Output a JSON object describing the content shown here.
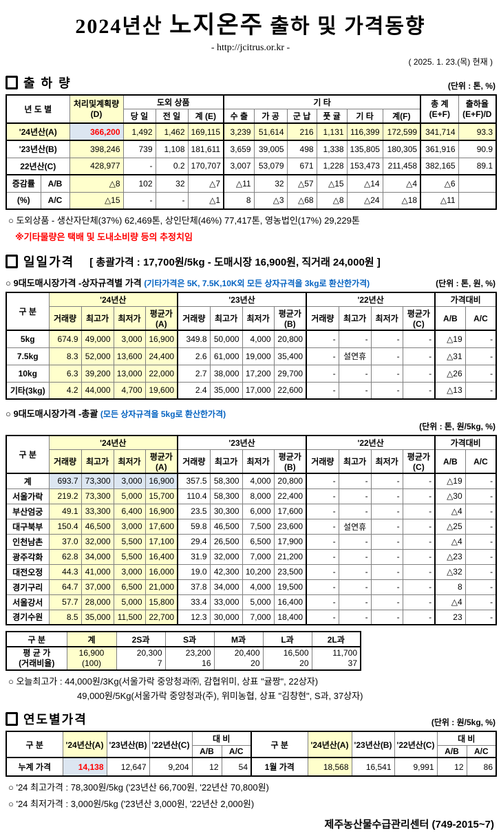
{
  "colors": {
    "highlight_yellow": "#FFFFCC",
    "highlight_blue": "#DCE6F1",
    "accent_red": "#FF0000",
    "accent_blue": "#0563C1"
  },
  "header": {
    "title_pre": "2024년산 ",
    "title_em": "노지온주",
    "title_post": " 출하 및 가격동향",
    "subtitle": "- http://jcitrus.or.kr -",
    "date_note": "( 2025.  1.  23.(목) 현재 )"
  },
  "shipment": {
    "section_title": "출 하 량",
    "unit": "(단위 : 톤, %)",
    "cols": {
      "yeardo": "년 도 별",
      "plan": "처리및계획량\n(D)",
      "island": "도외 상품",
      "day": "당 일",
      "prev": "전 일",
      "sumE": "계 (E)",
      "etc_group": "기            타",
      "export": "수 출",
      "proc": "가 공",
      "mil": "군 납",
      "green": "풋 귤",
      "etc": "기 타",
      "sumF": "계(F)",
      "total": "총   계\n(E+F)",
      "rate": "출하율\n(E+F)/D"
    },
    "rows": [
      [
        {
          "t": "'24년산(A)",
          "c": "lbl yl",
          "s": 2
        },
        {
          "t": "366,200",
          "c": "bl red"
        },
        {
          "t": "1,492",
          "c": "yl"
        },
        {
          "t": "1,462",
          "c": "yl"
        },
        {
          "t": "169,115",
          "c": "yl"
        },
        {
          "t": "3,239",
          "c": "yl gl"
        },
        {
          "t": "51,614",
          "c": "yl"
        },
        {
          "t": "216",
          "c": "yl"
        },
        {
          "t": "1,131",
          "c": "yl"
        },
        {
          "t": "116,399",
          "c": "yl"
        },
        {
          "t": "172,599",
          "c": "yl"
        },
        {
          "t": "341,714",
          "c": "yl gl"
        },
        {
          "t": "93.3",
          "c": "yl"
        }
      ],
      [
        {
          "t": "'23년산(B)",
          "c": "lbl",
          "s": 2
        },
        {
          "t": "398,246",
          "c": "yl"
        },
        "739",
        "1,108",
        "181,611",
        {
          "t": "3,659",
          "c": "gl"
        },
        "39,005",
        "498",
        "1,338",
        "135,805",
        "180,305",
        {
          "t": "361,916",
          "c": "gl"
        },
        "90.9"
      ],
      [
        {
          "t": "22년산(C)",
          "c": "lbl",
          "s": 2
        },
        {
          "t": "428,977",
          "c": "yl"
        },
        "-",
        "0.2",
        "170,707",
        {
          "t": "3,007",
          "c": "gl"
        },
        "53,079",
        "671",
        "1,228",
        "153,473",
        "211,458",
        {
          "t": "382,165",
          "c": "gl"
        },
        "89.1"
      ],
      [
        {
          "t": "증감률",
          "c": "lbl"
        },
        {
          "t": "A/B",
          "c": "lbl"
        },
        {
          "t": "△8",
          "c": "yl"
        },
        "102",
        "32",
        "△7",
        {
          "t": "△11",
          "c": "gl"
        },
        "32",
        "△57",
        "△15",
        "△14",
        "△4",
        {
          "t": "△6",
          "c": "gl"
        },
        ""
      ],
      [
        {
          "t": "(%)",
          "c": "lbl"
        },
        {
          "t": "A/C",
          "c": "lbl"
        },
        {
          "t": "△15",
          "c": "yl"
        },
        "-",
        "-",
        "△1",
        {
          "t": "8",
          "c": "gl"
        },
        "△3",
        "△68",
        "△8",
        "△24",
        "△18",
        {
          "t": "△11",
          "c": "gl"
        },
        ""
      ]
    ],
    "note1": "○ 도외상품 - 생산자단체(37%) 62,469톤, 상인단체(46%) 77,417톤, 영농법인(17%) 29,229톤",
    "note2": "※기타물량은 택배 및 도내소비량 등의 추정치임"
  },
  "daily": {
    "section_title": "일일가격",
    "summary": "[ 총괄가격 : 17,700원/5kg - 도매시장 16,900원, 직거래 24,000원 ]",
    "group_cols": {
      "g24": "'24년산",
      "g23": "'23년산",
      "g22": "'22년산",
      "cmp": "가격대비",
      "gubun": "구   분"
    },
    "sub_cols": [
      "거래량",
      "최고가",
      "최저가",
      "평균가(A)",
      "거래량",
      "최고가",
      "최저가",
      "평균가(B)",
      "거래량",
      "최고가",
      "최저가",
      "평균가(C)",
      "A/B",
      "A/C"
    ],
    "by_size": {
      "heading": "○ 9대도매시장가격 -상자규격별 가격",
      "heading_note": "(기타가격은 5K, 7.5K,10K외 모든 상자규격을 3kg로 환산한가격)",
      "unit": "(단위 : 톤, 원, %)",
      "rows": [
        [
          {
            "t": "5kg",
            "c": "lbl"
          },
          {
            "t": "674.9",
            "c": "yl"
          },
          {
            "t": "49,000",
            "c": "yl"
          },
          {
            "t": "3,000",
            "c": "yl"
          },
          {
            "t": "16,900",
            "c": "yl"
          },
          "349.8",
          "50,000",
          "4,000",
          "20,800",
          "-",
          "-",
          "-",
          "-",
          "△19",
          "-"
        ],
        [
          {
            "t": "7.5kg",
            "c": "lbl"
          },
          {
            "t": "8.3",
            "c": "yl"
          },
          {
            "t": "52,000",
            "c": "yl"
          },
          {
            "t": "13,600",
            "c": "yl"
          },
          {
            "t": "24,400",
            "c": "yl"
          },
          "2.6",
          "61,000",
          "19,000",
          "35,400",
          "-",
          {
            "t": "설연휴",
            "c": "ctr"
          },
          "-",
          "-",
          "△31",
          "-"
        ],
        [
          {
            "t": "10kg",
            "c": "lbl"
          },
          {
            "t": "6.3",
            "c": "yl"
          },
          {
            "t": "39,200",
            "c": "yl"
          },
          {
            "t": "13,000",
            "c": "yl"
          },
          {
            "t": "22,000",
            "c": "yl"
          },
          "2.7",
          "38,000",
          "17,200",
          "29,700",
          "-",
          "-",
          "-",
          "-",
          "△26",
          "-"
        ],
        [
          {
            "t": "기타(3kg)",
            "c": "lbl"
          },
          {
            "t": "4.2",
            "c": "yl"
          },
          {
            "t": "44,000",
            "c": "yl"
          },
          {
            "t": "4,700",
            "c": "yl"
          },
          {
            "t": "19,600",
            "c": "yl"
          },
          "2.4",
          "35,000",
          "17,000",
          "22,600",
          "-",
          "-",
          "-",
          "-",
          "△13",
          "-"
        ]
      ]
    },
    "overall": {
      "heading": "○ 9대도매시장가격 -총괄",
      "heading_note": "(모든 상자규격을 5kg로 환산한가격)",
      "unit": "(단위 : 톤, 원/5kg, %)",
      "rows": [
        [
          {
            "t": "계",
            "c": "lbl"
          },
          {
            "t": "693.7",
            "c": "bl"
          },
          {
            "t": "73,300",
            "c": "bl"
          },
          {
            "t": "3,000",
            "c": "bl"
          },
          {
            "t": "16,900",
            "c": "bl"
          },
          "357.5",
          "58,300",
          "4,000",
          "20,800",
          "-",
          "-",
          "-",
          "-",
          "△19",
          "-"
        ],
        [
          {
            "t": "서울가락",
            "c": "lbl"
          },
          {
            "t": "219.2",
            "c": "yl"
          },
          {
            "t": "73,300",
            "c": "yl"
          },
          {
            "t": "5,000",
            "c": "yl"
          },
          {
            "t": "15,700",
            "c": "yl"
          },
          "110.4",
          "58,300",
          "8,000",
          "22,400",
          "-",
          "-",
          "-",
          "-",
          "△30",
          "-"
        ],
        [
          {
            "t": "부산엄궁",
            "c": "lbl"
          },
          {
            "t": "49.1",
            "c": "yl"
          },
          {
            "t": "33,300",
            "c": "yl"
          },
          {
            "t": "6,400",
            "c": "yl"
          },
          {
            "t": "16,900",
            "c": "yl"
          },
          "23.5",
          "30,300",
          "6,000",
          "17,600",
          "-",
          "-",
          "-",
          "-",
          "△4",
          "-"
        ],
        [
          {
            "t": "대구북부",
            "c": "lbl"
          },
          {
            "t": "150.4",
            "c": "yl"
          },
          {
            "t": "46,500",
            "c": "yl"
          },
          {
            "t": "3,000",
            "c": "yl"
          },
          {
            "t": "17,600",
            "c": "yl"
          },
          "59.8",
          "46,500",
          "7,500",
          "23,600",
          "-",
          {
            "t": "설연휴",
            "c": "ctr"
          },
          "-",
          "-",
          "△25",
          "-"
        ],
        [
          {
            "t": "인천남촌",
            "c": "lbl"
          },
          {
            "t": "37.0",
            "c": "yl"
          },
          {
            "t": "32,000",
            "c": "yl"
          },
          {
            "t": "5,500",
            "c": "yl"
          },
          {
            "t": "17,100",
            "c": "yl"
          },
          "29.4",
          "26,500",
          "6,500",
          "17,900",
          "-",
          "-",
          "-",
          "-",
          "△4",
          "-"
        ],
        [
          {
            "t": "광주각화",
            "c": "lbl"
          },
          {
            "t": "62.8",
            "c": "yl"
          },
          {
            "t": "34,000",
            "c": "yl"
          },
          {
            "t": "5,500",
            "c": "yl"
          },
          {
            "t": "16,400",
            "c": "yl"
          },
          "31.9",
          "32,000",
          "7,000",
          "21,200",
          "-",
          "-",
          "-",
          "-",
          "△23",
          "-"
        ],
        [
          {
            "t": "대전오정",
            "c": "lbl"
          },
          {
            "t": "44.3",
            "c": "yl"
          },
          {
            "t": "41,000",
            "c": "yl"
          },
          {
            "t": "3,000",
            "c": "yl"
          },
          {
            "t": "16,000",
            "c": "yl"
          },
          "19.0",
          "42,300",
          "10,200",
          "23,500",
          "-",
          "-",
          "-",
          "-",
          "△32",
          "-"
        ],
        [
          {
            "t": "경기구리",
            "c": "lbl"
          },
          {
            "t": "64.7",
            "c": "yl"
          },
          {
            "t": "37,000",
            "c": "yl"
          },
          {
            "t": "6,500",
            "c": "yl"
          },
          {
            "t": "21,000",
            "c": "yl"
          },
          "37.8",
          "34,000",
          "4,000",
          "19,500",
          "-",
          "-",
          "-",
          "-",
          "8",
          "-"
        ],
        [
          {
            "t": "서울강서",
            "c": "lbl"
          },
          {
            "t": "57.7",
            "c": "yl"
          },
          {
            "t": "28,000",
            "c": "yl"
          },
          {
            "t": "5,000",
            "c": "yl"
          },
          {
            "t": "15,800",
            "c": "yl"
          },
          "33.4",
          "33,000",
          "5,000",
          "16,400",
          "-",
          "-",
          "-",
          "-",
          "△4",
          "-"
        ],
        [
          {
            "t": "경기수원",
            "c": "lbl"
          },
          {
            "t": "8.5",
            "c": "yl"
          },
          {
            "t": "35,000",
            "c": "yl"
          },
          {
            "t": "11,500",
            "c": "yl"
          },
          {
            "t": "22,700",
            "c": "yl"
          },
          "12.3",
          "30,000",
          "7,000",
          "18,400",
          "-",
          "-",
          "-",
          "-",
          "23",
          "-"
        ]
      ]
    },
    "by_grade": {
      "cols": [
        "구   분",
        "계",
        "2S과",
        "S과",
        "M과",
        "L과",
        "2L과"
      ],
      "rows": [
        [
          {
            "t": "평 균 가\n(거래비율)",
            "c": "lbl two"
          },
          {
            "t": "16,900\n(100)",
            "c": "yl two ctr"
          },
          {
            "t": "20,300\n7",
            "c": "two"
          },
          {
            "t": "23,200\n16",
            "c": "two"
          },
          {
            "t": "20,400\n20",
            "c": "two"
          },
          {
            "t": "16,500\n20",
            "c": "two"
          },
          {
            "t": "11,700\n37",
            "c": "two"
          }
        ]
      ]
    },
    "note1": "○ 오늘최고가 : 44,000원/3Kg(서울가락 중앙청과㈜, 감협위미, 상표 \"귤짱\", 22상자)",
    "note2": "49,000원/5Kg(서울가락 중앙청과(주),  위미농협, 상표 \"김창현\", S과,  37상자)"
  },
  "yearly": {
    "section_title": "연도별가격",
    "unit": "(단위 : 원/5kg, %)",
    "cols": {
      "gubun": "구    분",
      "a": "'24년산(A)",
      "b": "'23년산(B)",
      "c": "'22년산(C)",
      "bi": "대    비",
      "ab": "A/B",
      "ac": "A/C"
    },
    "rows": [
      [
        {
          "t": "누계 가격",
          "c": "lbl"
        },
        {
          "t": "14,138",
          "c": "bl red"
        },
        "12,647",
        "9,204",
        "12",
        "54",
        {
          "t": "1월 가격",
          "c": "lbl gl"
        },
        {
          "t": "18,568",
          "c": "yl"
        },
        "16,541",
        "9,991",
        "12",
        "86"
      ]
    ],
    "note1": "○ '24 최고가격 : 78,300원/5kg ('23년산 66,700원, '22년산 70,800원)",
    "note2": "○ '24 최저가격 :   3,000원/5kg ('23년산  3,000원, '22년산  2,000원)"
  },
  "footer": {
    "org": "제주농산물수급관리센터 (749-2015~7)"
  }
}
